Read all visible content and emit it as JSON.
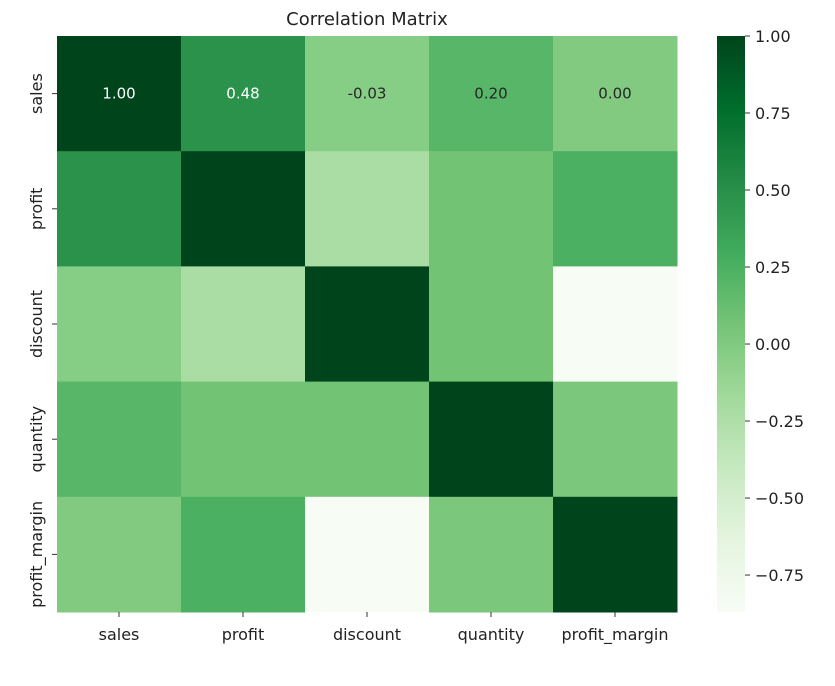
{
  "chart_data": {
    "type": "heatmap",
    "title": "Correlation Matrix",
    "rows": [
      "sales",
      "profit",
      "discount",
      "quantity",
      "profit_margin"
    ],
    "columns": [
      "sales",
      "profit",
      "discount",
      "quantity",
      "profit_margin"
    ],
    "values": [
      [
        1.0,
        0.48,
        -0.03,
        0.2,
        0.0
      ],
      [
        0.48,
        1.0,
        -0.22,
        0.07,
        0.25
      ],
      [
        -0.03,
        -0.22,
        1.0,
        0.07,
        -0.87
      ],
      [
        0.2,
        0.07,
        0.07,
        1.0,
        0.03
      ],
      [
        0.0,
        0.25,
        -0.87,
        0.03,
        1.0
      ]
    ],
    "annotated_cells": [
      {
        "row": 0,
        "col": 0,
        "label": "1.00"
      },
      {
        "row": 0,
        "col": 1,
        "label": "0.48"
      },
      {
        "row": 0,
        "col": 2,
        "label": "-0.03"
      },
      {
        "row": 0,
        "col": 3,
        "label": "0.20"
      },
      {
        "row": 0,
        "col": 4,
        "label": "0.00"
      }
    ],
    "colormap": "Greens",
    "color_low": "#f7fcf5",
    "color_high": "#00441b",
    "vmin": -0.87,
    "vmax": 1.0,
    "colorbar_ticks": [
      "1.00",
      "0.75",
      "0.50",
      "0.25",
      "0.00",
      "−0.25",
      "−0.50",
      "−0.75"
    ],
    "colorbar_tick_values": [
      1.0,
      0.75,
      0.5,
      0.25,
      0.0,
      -0.25,
      -0.5,
      -0.75
    ]
  }
}
